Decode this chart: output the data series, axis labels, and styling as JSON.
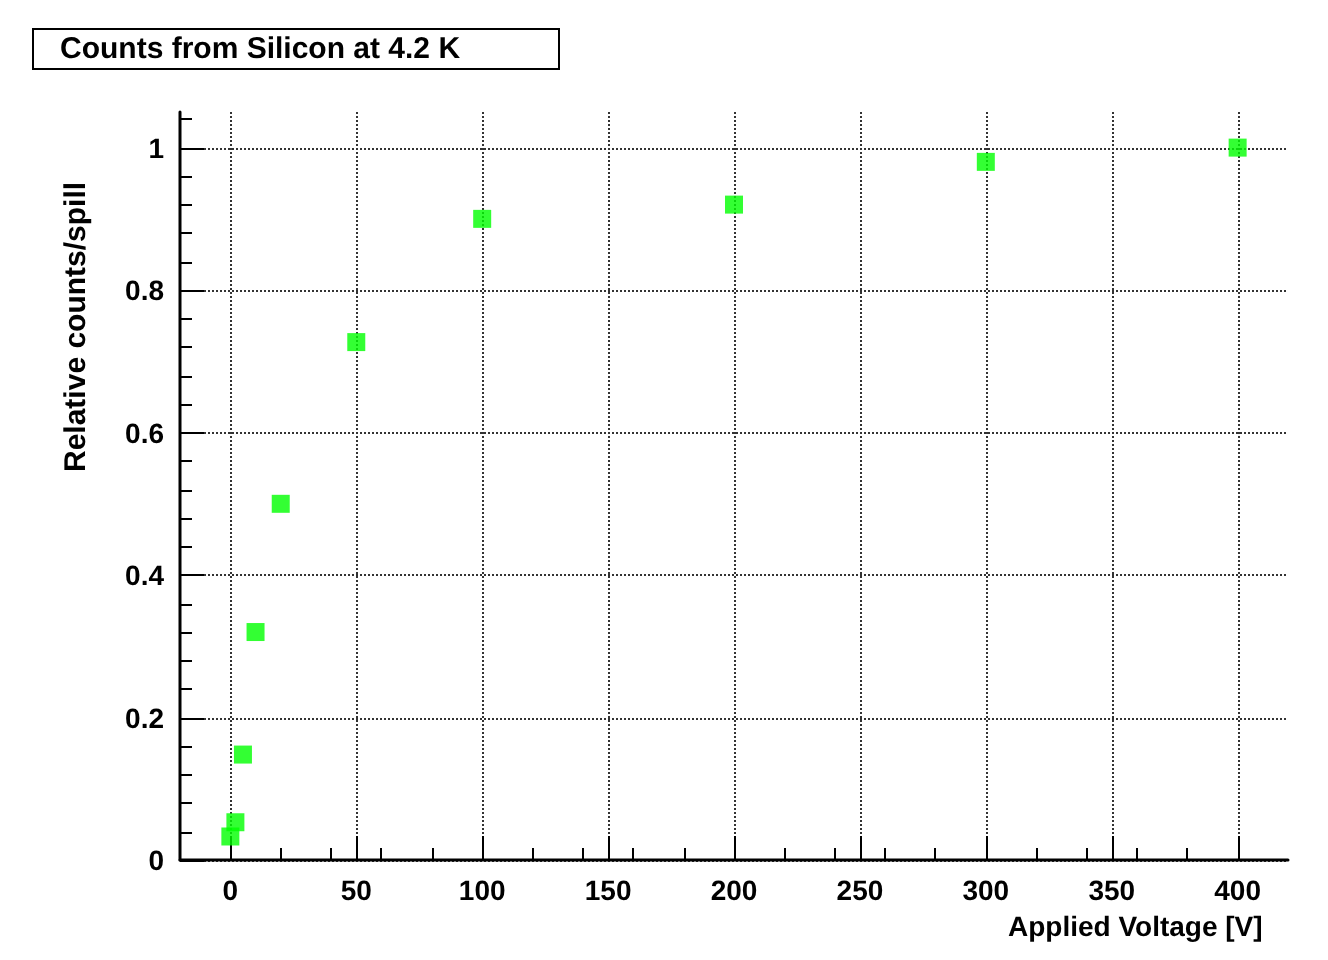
{
  "chart_data": {
    "type": "scatter",
    "title": "Counts from Silicon at 4.2 K",
    "xlabel": "Applied Voltage [V]",
    "ylabel": "Relative counts/spill",
    "x": [
      0,
      2,
      5,
      10,
      20,
      50,
      100,
      200,
      300,
      400
    ],
    "series": [
      {
        "color": "#00ff00",
        "values": [
          0.033,
          0.053,
          0.148,
          0.32,
          0.5,
          0.727,
          0.9,
          0.92,
          0.98,
          1.0
        ]
      }
    ],
    "xlim": [
      -20,
      420
    ],
    "xticks": [
      0,
      50,
      100,
      150,
      200,
      250,
      300,
      350,
      400
    ],
    "ylim": [
      0,
      1.05
    ],
    "yticks": [
      0,
      0.2,
      0.4,
      0.6,
      0.8,
      1
    ],
    "grid": true,
    "marker": "square"
  }
}
